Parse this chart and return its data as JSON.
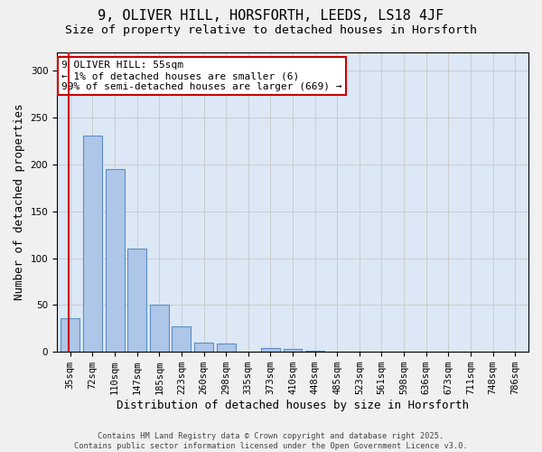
{
  "title_line1": "9, OLIVER HILL, HORSFORTH, LEEDS, LS18 4JF",
  "title_line2": "Size of property relative to detached houses in Horsforth",
  "xlabel": "Distribution of detached houses by size in Horsforth",
  "ylabel": "Number of detached properties",
  "bar_values": [
    36,
    231,
    195,
    110,
    50,
    27,
    10,
    9,
    0,
    4,
    3,
    1,
    0,
    0,
    0,
    0,
    0,
    0,
    0,
    0,
    0
  ],
  "categories": [
    "35sqm",
    "72sqm",
    "110sqm",
    "147sqm",
    "185sqm",
    "223sqm",
    "260sqm",
    "298sqm",
    "335sqm",
    "373sqm",
    "410sqm",
    "448sqm",
    "485sqm",
    "523sqm",
    "561sqm",
    "598sqm",
    "636sqm",
    "673sqm",
    "711sqm",
    "748sqm",
    "786sqm"
  ],
  "bar_color": "#aec6e8",
  "bar_edge_color": "#5a8fc4",
  "vline_color": "#cc0000",
  "annotation_text": "9 OLIVER HILL: 55sqm\n← 1% of detached houses are smaller (6)\n99% of semi-detached houses are larger (669) →",
  "annotation_box_color": "#ffffff",
  "annotation_box_edge": "#cc0000",
  "ylim": [
    0,
    320
  ],
  "yticks": [
    0,
    50,
    100,
    150,
    200,
    250,
    300
  ],
  "grid_color": "#cccccc",
  "bg_color": "#dce8f5",
  "fig_bg_color": "#f0f0f0",
  "footer_text": "Contains HM Land Registry data © Crown copyright and database right 2025.\nContains public sector information licensed under the Open Government Licence v3.0.",
  "title_fontsize": 11,
  "subtitle_fontsize": 9.5,
  "axis_label_fontsize": 9,
  "tick_fontsize": 7.5,
  "annotation_fontsize": 8
}
